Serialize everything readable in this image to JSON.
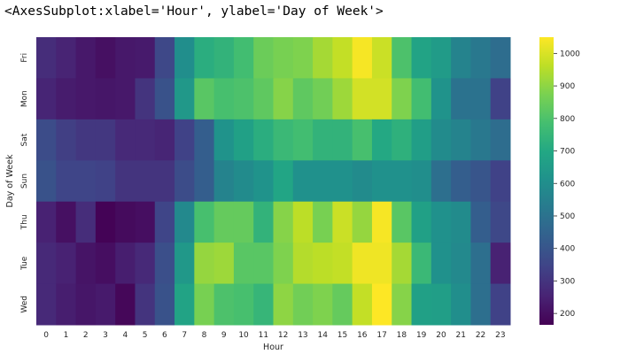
{
  "output_repr": "<AxesSubplot:xlabel='Hour', ylabel='Day of Week'>",
  "chart_data": {
    "type": "heatmap",
    "colormap": "viridis",
    "xlabel": "Hour",
    "ylabel": "Day of Week",
    "x_categories": [
      "0",
      "1",
      "2",
      "3",
      "4",
      "5",
      "6",
      "7",
      "8",
      "9",
      "10",
      "11",
      "12",
      "13",
      "14",
      "15",
      "16",
      "17",
      "18",
      "19",
      "20",
      "21",
      "22",
      "23"
    ],
    "y_categories": [
      "Fri",
      "Mon",
      "Sat",
      "Sun",
      "Thu",
      "Tue",
      "Wed"
    ],
    "values": [
      [
        280,
        255,
        225,
        205,
        225,
        230,
        360,
        600,
        720,
        740,
        780,
        850,
        870,
        880,
        930,
        970,
        1040,
        980,
        800,
        680,
        650,
        560,
        520,
        480
      ],
      [
        260,
        235,
        225,
        220,
        225,
        300,
        390,
        640,
        820,
        790,
        800,
        830,
        890,
        830,
        860,
        920,
        990,
        990,
        880,
        780,
        620,
        500,
        500,
        340
      ],
      [
        370,
        330,
        310,
        310,
        270,
        270,
        260,
        340,
        430,
        620,
        670,
        720,
        760,
        780,
        740,
        740,
        790,
        700,
        730,
        660,
        590,
        560,
        520,
        480
      ],
      [
        390,
        350,
        350,
        340,
        300,
        300,
        300,
        370,
        430,
        560,
        590,
        620,
        690,
        610,
        610,
        610,
        590,
        610,
        610,
        600,
        490,
        430,
        400,
        340
      ],
      [
        250,
        205,
        280,
        170,
        190,
        200,
        350,
        580,
        790,
        840,
        840,
        740,
        890,
        960,
        870,
        980,
        910,
        1040,
        820,
        670,
        610,
        590,
        430,
        360
      ],
      [
        270,
        250,
        215,
        200,
        240,
        270,
        380,
        640,
        910,
        920,
        820,
        820,
        880,
        950,
        960,
        970,
        1030,
        1030,
        930,
        760,
        610,
        580,
        490,
        250
      ],
      [
        270,
        240,
        220,
        230,
        180,
        300,
        390,
        680,
        870,
        800,
        790,
        750,
        900,
        860,
        880,
        840,
        970,
        1050,
        890,
        670,
        660,
        600,
        490,
        340
      ]
    ],
    "colorbar_ticks": [
      200,
      300,
      400,
      500,
      600,
      700,
      800,
      900,
      1000
    ],
    "colorbar_range": [
      165,
      1050
    ]
  }
}
